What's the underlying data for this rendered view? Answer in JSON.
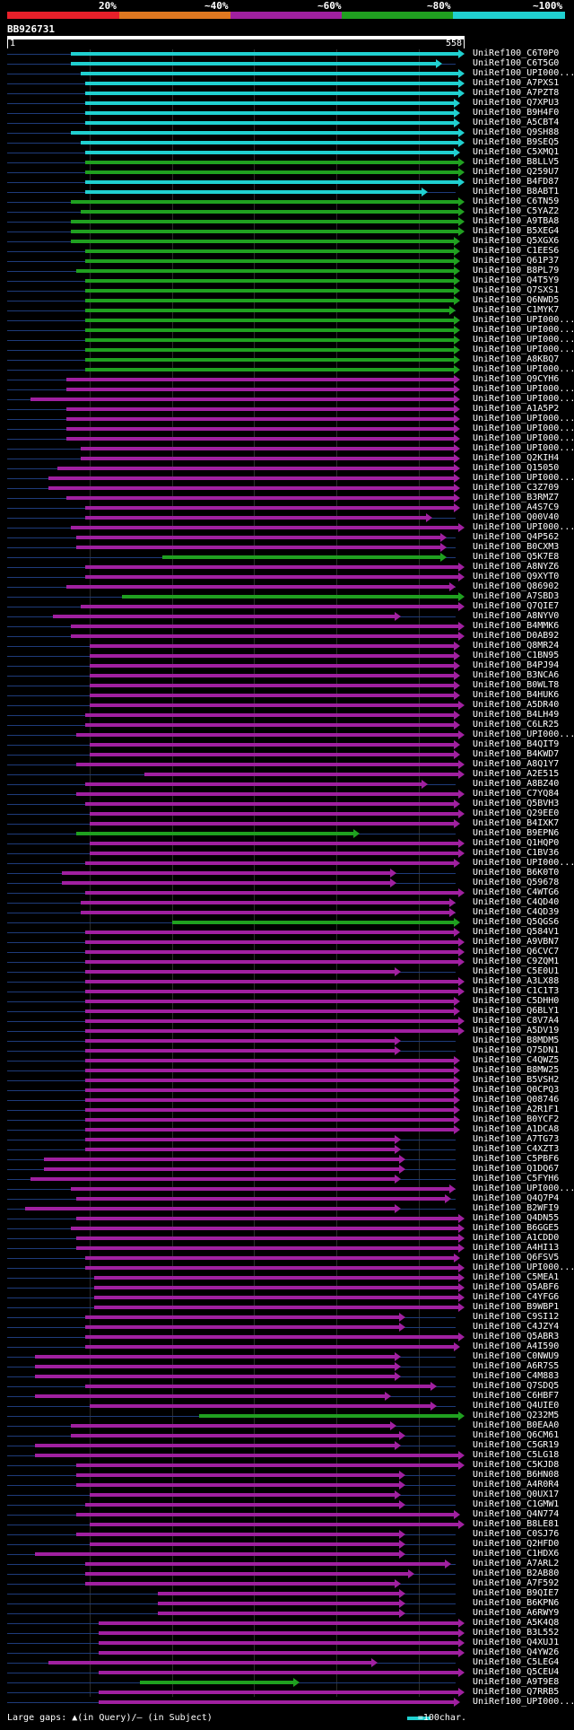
{
  "legend": {
    "labels": [
      "20%",
      "~40%",
      "~60%",
      "~80%",
      "~100%"
    ],
    "colors": [
      "#e8202a",
      "#e07820",
      "#a020a0",
      "#20a020",
      "#20d0d0"
    ]
  },
  "query": {
    "name": "BB926731",
    "start": "1",
    "end": "558"
  },
  "footer": {
    "legend_text": "Large gaps: ▲(in Query)/– (in Subject)",
    "scale_text": "=100char."
  },
  "hits": [
    {
      "label": "UniRef100_C6T0P0",
      "start": 0.14,
      "end": 1.0,
      "color": "#20d0d0"
    },
    {
      "label": "UniRef100_C6T5G0",
      "start": 0.14,
      "end": 0.95,
      "color": "#20d0d0"
    },
    {
      "label": "UniRef100_UPI000...",
      "start": 0.16,
      "end": 1.0,
      "color": "#20d0d0"
    },
    {
      "label": "UniRef100_A7PXS1",
      "start": 0.17,
      "end": 1.0,
      "color": "#20d0d0"
    },
    {
      "label": "UniRef100_A7PZT8",
      "start": 0.17,
      "end": 1.0,
      "color": "#20d0d0"
    },
    {
      "label": "UniRef100_Q7XPU3",
      "start": 0.17,
      "end": 0.99,
      "color": "#20d0d0"
    },
    {
      "label": "UniRef100_B9H4F0",
      "start": 0.17,
      "end": 0.99,
      "color": "#20d0d0"
    },
    {
      "label": "UniRef100_A5CBT4",
      "start": 0.17,
      "end": 0.99,
      "color": "#20d0d0"
    },
    {
      "label": "UniRef100_Q9SH88",
      "start": 0.14,
      "end": 1.0,
      "color": "#20d0d0"
    },
    {
      "label": "UniRef100_B9SEQ5",
      "start": 0.16,
      "end": 1.0,
      "color": "#20d0d0"
    },
    {
      "label": "UniRef100_C5XMQ1",
      "start": 0.17,
      "end": 0.99,
      "color": "#20d0d0"
    },
    {
      "label": "UniRef100_B8LLV5",
      "start": 0.17,
      "end": 1.0,
      "color": "#20a020"
    },
    {
      "label": "UniRef100_Q259U7",
      "start": 0.17,
      "end": 1.0,
      "color": "#20a020"
    },
    {
      "label": "UniRef100_B4FD87",
      "start": 0.17,
      "end": 1.0,
      "color": "#20d0d0"
    },
    {
      "label": "UniRef100_B8ABT1",
      "start": 0.17,
      "end": 0.92,
      "color": "#20d0d0"
    },
    {
      "label": "UniRef100_C6TN59",
      "start": 0.14,
      "end": 1.0,
      "color": "#20a020"
    },
    {
      "label": "UniRef100_C5YAZ2",
      "start": 0.16,
      "end": 1.0,
      "color": "#20a020"
    },
    {
      "label": "UniRef100_A9TBA8",
      "start": 0.14,
      "end": 1.0,
      "color": "#20a020"
    },
    {
      "label": "UniRef100_B5XEG4",
      "start": 0.14,
      "end": 1.0,
      "color": "#20a020"
    },
    {
      "label": "UniRef100_Q5XGX6",
      "start": 0.14,
      "end": 0.99,
      "color": "#20a020"
    },
    {
      "label": "UniRef100_C1EES6",
      "start": 0.17,
      "end": 0.99,
      "color": "#20a020"
    },
    {
      "label": "UniRef100_Q61P37",
      "start": 0.17,
      "end": 0.99,
      "color": "#20a020"
    },
    {
      "label": "UniRef100_B8PL79",
      "start": 0.15,
      "end": 0.99,
      "color": "#20a020"
    },
    {
      "label": "UniRef100_Q4T5Y9",
      "start": 0.17,
      "end": 0.99,
      "color": "#20a020"
    },
    {
      "label": "UniRef100_Q7SXS1",
      "start": 0.17,
      "end": 0.99,
      "color": "#20a020"
    },
    {
      "label": "UniRef100_Q6NWD5",
      "start": 0.17,
      "end": 0.99,
      "color": "#20a020"
    },
    {
      "label": "UniRef100_C1MYK7",
      "start": 0.17,
      "end": 0.98,
      "color": "#20a020"
    },
    {
      "label": "UniRef100_UPI000...",
      "start": 0.17,
      "end": 0.99,
      "color": "#20a020"
    },
    {
      "label": "UniRef100_UPI000...",
      "start": 0.17,
      "end": 0.99,
      "color": "#20a020"
    },
    {
      "label": "UniRef100_UPI000...",
      "start": 0.17,
      "end": 0.99,
      "color": "#20a020"
    },
    {
      "label": "UniRef100_UPI000...",
      "start": 0.17,
      "end": 0.99,
      "color": "#20a020"
    },
    {
      "label": "UniRef100_A8KBQ7",
      "start": 0.17,
      "end": 0.99,
      "color": "#20a020"
    },
    {
      "label": "UniRef100_UPI000...",
      "start": 0.17,
      "end": 0.99,
      "color": "#20a020"
    },
    {
      "label": "UniRef100_Q9CYH6",
      "start": 0.13,
      "end": 0.99,
      "color": "#a020a0"
    },
    {
      "label": "UniRef100_UPI000...",
      "start": 0.13,
      "end": 0.99,
      "color": "#a020a0"
    },
    {
      "label": "UniRef100_UPI000...",
      "start": 0.05,
      "end": 0.99,
      "color": "#a020a0"
    },
    {
      "label": "UniRef100_A1A5P2",
      "start": 0.13,
      "end": 0.99,
      "color": "#a020a0"
    },
    {
      "label": "UniRef100_UPI000...",
      "start": 0.13,
      "end": 0.99,
      "color": "#a020a0"
    },
    {
      "label": "UniRef100_UPI000...",
      "start": 0.13,
      "end": 0.99,
      "color": "#a020a0"
    },
    {
      "label": "UniRef100_UPI000...",
      "start": 0.13,
      "end": 0.99,
      "color": "#a020a0"
    },
    {
      "label": "UniRef100_UPI000...",
      "start": 0.16,
      "end": 0.99,
      "color": "#a020a0"
    },
    {
      "label": "UniRef100_Q2KIH4",
      "start": 0.16,
      "end": 0.99,
      "color": "#a020a0"
    },
    {
      "label": "UniRef100_Q15050",
      "start": 0.11,
      "end": 0.99,
      "color": "#a020a0"
    },
    {
      "label": "UniRef100_UPI000...",
      "start": 0.09,
      "end": 0.99,
      "color": "#a020a0"
    },
    {
      "label": "UniRef100_C3Z709",
      "start": 0.09,
      "end": 0.99,
      "color": "#a020a0"
    },
    {
      "label": "UniRef100_B3RMZ7",
      "start": 0.13,
      "end": 0.99,
      "color": "#a020a0"
    },
    {
      "label": "UniRef100_A4S7C9",
      "start": 0.17,
      "end": 0.99,
      "color": "#a020a0"
    },
    {
      "label": "UniRef100_Q00V40",
      "start": 0.17,
      "end": 0.93,
      "color": "#a020a0"
    },
    {
      "label": "UniRef100_UPI000...",
      "start": 0.14,
      "end": 1.0,
      "color": "#a020a0"
    },
    {
      "label": "UniRef100_Q4P562",
      "start": 0.15,
      "end": 0.96,
      "color": "#a020a0"
    },
    {
      "label": "UniRef100_B0CXM3",
      "start": 0.15,
      "end": 0.96,
      "color": "#a020a0"
    },
    {
      "label": "UniRef100_Q5K7E8",
      "start": 0.34,
      "end": 0.96,
      "color": "#20a020"
    },
    {
      "label": "UniRef100_A8NYZ6",
      "start": 0.17,
      "end": 1.0,
      "color": "#a020a0"
    },
    {
      "label": "UniRef100_Q9XYT0",
      "start": 0.17,
      "end": 1.0,
      "color": "#a020a0"
    },
    {
      "label": "UniRef100_Q86902",
      "start": 0.13,
      "end": 0.98,
      "color": "#a020a0"
    },
    {
      "label": "UniRef100_A7SBD3",
      "start": 0.25,
      "end": 1.0,
      "color": "#20a020"
    },
    {
      "label": "UniRef100_Q7QIE7",
      "start": 0.16,
      "end": 1.0,
      "color": "#a020a0"
    },
    {
      "label": "UniRef100_A8NYV0",
      "start": 0.1,
      "end": 0.86,
      "color": "#a020a0"
    },
    {
      "label": "UniRef100_B4MMK6",
      "start": 0.14,
      "end": 1.0,
      "color": "#a020a0"
    },
    {
      "label": "UniRef100_D0AB92",
      "start": 0.14,
      "end": 1.0,
      "color": "#a020a0"
    },
    {
      "label": "UniRef100_Q8MR24",
      "start": 0.18,
      "end": 0.99,
      "color": "#a020a0"
    },
    {
      "label": "UniRef100_C1BN95",
      "start": 0.18,
      "end": 0.99,
      "color": "#a020a0"
    },
    {
      "label": "UniRef100_B4PJ94",
      "start": 0.18,
      "end": 0.99,
      "color": "#a020a0"
    },
    {
      "label": "UniRef100_B3NCA6",
      "start": 0.18,
      "end": 0.99,
      "color": "#a020a0"
    },
    {
      "label": "UniRef100_B0WLT8",
      "start": 0.18,
      "end": 0.99,
      "color": "#a020a0"
    },
    {
      "label": "UniRef100_B4HUK6",
      "start": 0.18,
      "end": 0.99,
      "color": "#a020a0"
    },
    {
      "label": "UniRef100_A5DR40",
      "start": 0.18,
      "end": 1.0,
      "color": "#a020a0"
    },
    {
      "label": "UniRef100_B4LH49",
      "start": 0.17,
      "end": 0.99,
      "color": "#a020a0"
    },
    {
      "label": "UniRef100_C6LR25",
      "start": 0.17,
      "end": 0.99,
      "color": "#a020a0"
    },
    {
      "label": "UniRef100_UPI000...",
      "start": 0.15,
      "end": 1.0,
      "color": "#a020a0"
    },
    {
      "label": "UniRef100_B4QIT9",
      "start": 0.18,
      "end": 0.99,
      "color": "#a020a0"
    },
    {
      "label": "UniRef100_B4KWD7",
      "start": 0.18,
      "end": 0.99,
      "color": "#a020a0"
    },
    {
      "label": "UniRef100_A8Q1Y7",
      "start": 0.15,
      "end": 1.0,
      "color": "#a020a0"
    },
    {
      "label": "UniRef100_A2E515",
      "start": 0.3,
      "end": 1.0,
      "color": "#a020a0"
    },
    {
      "label": "UniRef100_A8BZ40",
      "start": 0.17,
      "end": 0.92,
      "color": "#a020a0"
    },
    {
      "label": "UniRef100_C7YQ84",
      "start": 0.15,
      "end": 1.0,
      "color": "#a020a0"
    },
    {
      "label": "UniRef100_Q5BVH3",
      "start": 0.17,
      "end": 0.99,
      "color": "#a020a0"
    },
    {
      "label": "UniRef100_Q29EE0",
      "start": 0.18,
      "end": 1.0,
      "color": "#a020a0"
    },
    {
      "label": "UniRef100_B4IXK7",
      "start": 0.18,
      "end": 0.99,
      "color": "#a020a0"
    },
    {
      "label": "UniRef100_B9EPN6",
      "start": 0.15,
      "end": 0.77,
      "color": "#20a020"
    },
    {
      "label": "UniRef100_Q1HQP0",
      "start": 0.18,
      "end": 1.0,
      "color": "#a020a0"
    },
    {
      "label": "UniRef100_C1BV36",
      "start": 0.18,
      "end": 1.0,
      "color": "#a020a0"
    },
    {
      "label": "UniRef100_UPI000...",
      "start": 0.17,
      "end": 0.99,
      "color": "#a020a0"
    },
    {
      "label": "UniRef100_B6K0T0",
      "start": 0.12,
      "end": 0.85,
      "color": "#a020a0"
    },
    {
      "label": "UniRef100_Q59678",
      "start": 0.12,
      "end": 0.85,
      "color": "#a020a0"
    },
    {
      "label": "UniRef100_C4WTG6",
      "start": 0.17,
      "end": 1.0,
      "color": "#a020a0"
    },
    {
      "label": "UniRef100_C4QD40",
      "start": 0.16,
      "end": 0.98,
      "color": "#a020a0"
    },
    {
      "label": "UniRef100_C4QD39",
      "start": 0.16,
      "end": 0.98,
      "color": "#a020a0"
    },
    {
      "label": "UniRef100_Q5QGS6",
      "start": 0.36,
      "end": 0.99,
      "color": "#20a020"
    },
    {
      "label": "UniRef100_Q584V1",
      "start": 0.17,
      "end": 0.99,
      "color": "#a020a0"
    },
    {
      "label": "UniRef100_A9VBN7",
      "start": 0.17,
      "end": 1.0,
      "color": "#a020a0"
    },
    {
      "label": "UniRef100_Q6CVC7",
      "start": 0.17,
      "end": 1.0,
      "color": "#a020a0"
    },
    {
      "label": "UniRef100_C9ZQM1",
      "start": 0.17,
      "end": 1.0,
      "color": "#a020a0"
    },
    {
      "label": "UniRef100_C5E0U1",
      "start": 0.17,
      "end": 0.86,
      "color": "#a020a0"
    },
    {
      "label": "UniRef100_A3LX88",
      "start": 0.17,
      "end": 1.0,
      "color": "#a020a0"
    },
    {
      "label": "UniRef100_C1C1T3",
      "start": 0.17,
      "end": 1.0,
      "color": "#a020a0"
    },
    {
      "label": "UniRef100_C5DHH0",
      "start": 0.17,
      "end": 0.99,
      "color": "#a020a0"
    },
    {
      "label": "UniRef100_Q6BLY1",
      "start": 0.17,
      "end": 0.99,
      "color": "#a020a0"
    },
    {
      "label": "UniRef100_C8V7A4",
      "start": 0.17,
      "end": 1.0,
      "color": "#a020a0"
    },
    {
      "label": "UniRef100_A5DV19",
      "start": 0.17,
      "end": 1.0,
      "color": "#a020a0"
    },
    {
      "label": "UniRef100_B8MDM5",
      "start": 0.17,
      "end": 0.86,
      "color": "#a020a0"
    },
    {
      "label": "UniRef100_Q75DN1",
      "start": 0.17,
      "end": 0.86,
      "color": "#a020a0"
    },
    {
      "label": "UniRef100_C4QWZ5",
      "start": 0.17,
      "end": 0.99,
      "color": "#a020a0"
    },
    {
      "label": "UniRef100_B8MW25",
      "start": 0.17,
      "end": 0.99,
      "color": "#a020a0"
    },
    {
      "label": "UniRef100_B5VSH2",
      "start": 0.17,
      "end": 0.99,
      "color": "#a020a0"
    },
    {
      "label": "UniRef100_Q0CPQ3",
      "start": 0.17,
      "end": 0.99,
      "color": "#a020a0"
    },
    {
      "label": "UniRef100_Q08746",
      "start": 0.17,
      "end": 0.99,
      "color": "#a020a0"
    },
    {
      "label": "UniRef100_A2R1F1",
      "start": 0.17,
      "end": 0.99,
      "color": "#a020a0"
    },
    {
      "label": "UniRef100_B0YCF2",
      "start": 0.17,
      "end": 0.99,
      "color": "#a020a0"
    },
    {
      "label": "UniRef100_A1DCA8",
      "start": 0.17,
      "end": 0.99,
      "color": "#a020a0"
    },
    {
      "label": "UniRef100_A7TG73",
      "start": 0.17,
      "end": 0.86,
      "color": "#a020a0"
    },
    {
      "label": "UniRef100_C4XZT3",
      "start": 0.17,
      "end": 0.86,
      "color": "#a020a0"
    },
    {
      "label": "UniRef100_C5PBF6",
      "start": 0.08,
      "end": 0.87,
      "color": "#a020a0"
    },
    {
      "label": "UniRef100_Q1DQ67",
      "start": 0.08,
      "end": 0.87,
      "color": "#a020a0"
    },
    {
      "label": "UniRef100_C5FYH6",
      "start": 0.05,
      "end": 0.86,
      "color": "#a020a0"
    },
    {
      "label": "UniRef100_UPI000...",
      "start": 0.14,
      "end": 0.98,
      "color": "#a020a0"
    },
    {
      "label": "UniRef100_Q4Q7P4",
      "start": 0.15,
      "end": 0.97,
      "color": "#a020a0"
    },
    {
      "label": "UniRef100_B2WFI9",
      "start": 0.04,
      "end": 0.86,
      "color": "#a020a0"
    },
    {
      "label": "UniRef100_Q4DN55",
      "start": 0.15,
      "end": 1.0,
      "color": "#a020a0"
    },
    {
      "label": "UniRef100_B6GGE5",
      "start": 0.14,
      "end": 1.0,
      "color": "#a020a0"
    },
    {
      "label": "UniRef100_A1CDD0",
      "start": 0.15,
      "end": 1.0,
      "color": "#a020a0"
    },
    {
      "label": "UniRef100_A4HI13",
      "start": 0.15,
      "end": 1.0,
      "color": "#a020a0"
    },
    {
      "label": "UniRef100_Q6FSV5",
      "start": 0.17,
      "end": 0.99,
      "color": "#a020a0"
    },
    {
      "label": "UniRef100_UPI000...",
      "start": 0.17,
      "end": 1.0,
      "color": "#a020a0"
    },
    {
      "label": "UniRef100_C5MEA1",
      "start": 0.19,
      "end": 1.0,
      "color": "#a020a0"
    },
    {
      "label": "UniRef100_Q5ABF6",
      "start": 0.19,
      "end": 1.0,
      "color": "#a020a0"
    },
    {
      "label": "UniRef100_C4YFG6",
      "start": 0.19,
      "end": 1.0,
      "color": "#a020a0"
    },
    {
      "label": "UniRef100_B9WBP1",
      "start": 0.19,
      "end": 1.0,
      "color": "#a020a0"
    },
    {
      "label": "UniRef100_C9SI12",
      "start": 0.17,
      "end": 0.87,
      "color": "#a020a0"
    },
    {
      "label": "UniRef100_C4JZY4",
      "start": 0.17,
      "end": 0.87,
      "color": "#a020a0"
    },
    {
      "label": "UniRef100_Q5ABR3",
      "start": 0.17,
      "end": 1.0,
      "color": "#a020a0"
    },
    {
      "label": "UniRef100_A4I590",
      "start": 0.17,
      "end": 0.99,
      "color": "#a020a0"
    },
    {
      "label": "UniRef100_C0NWU9",
      "start": 0.06,
      "end": 0.86,
      "color": "#a020a0"
    },
    {
      "label": "UniRef100_A6R7S5",
      "start": 0.06,
      "end": 0.86,
      "color": "#a020a0"
    },
    {
      "label": "UniRef100_C4M883",
      "start": 0.06,
      "end": 0.86,
      "color": "#a020a0"
    },
    {
      "label": "UniRef100_Q7SDQ5",
      "start": 0.17,
      "end": 0.94,
      "color": "#a020a0"
    },
    {
      "label": "UniRef100_C6HBF7",
      "start": 0.06,
      "end": 0.84,
      "color": "#a020a0"
    },
    {
      "label": "UniRef100_Q4UIE0",
      "start": 0.18,
      "end": 0.94,
      "color": "#a020a0"
    },
    {
      "label": "UniRef100_Q232M5",
      "start": 0.42,
      "end": 1.0,
      "color": "#20a020"
    },
    {
      "label": "UniRef100_B0EAA0",
      "start": 0.14,
      "end": 0.85,
      "color": "#a020a0"
    },
    {
      "label": "UniRef100_Q6CM61",
      "start": 0.14,
      "end": 0.87,
      "color": "#a020a0"
    },
    {
      "label": "UniRef100_C5GR19",
      "start": 0.06,
      "end": 0.86,
      "color": "#a020a0"
    },
    {
      "label": "UniRef100_C5LG18",
      "start": 0.06,
      "end": 1.0,
      "color": "#a020a0"
    },
    {
      "label": "UniRef100_C5KJD8",
      "start": 0.15,
      "end": 1.0,
      "color": "#a020a0"
    },
    {
      "label": "UniRef100_B6HN08",
      "start": 0.15,
      "end": 0.87,
      "color": "#a020a0"
    },
    {
      "label": "UniRef100_A4R0R4",
      "start": 0.15,
      "end": 0.87,
      "color": "#a020a0"
    },
    {
      "label": "UniRef100_Q0UX17",
      "start": 0.18,
      "end": 0.86,
      "color": "#a020a0"
    },
    {
      "label": "UniRef100_C1GMW1",
      "start": 0.17,
      "end": 0.87,
      "color": "#a020a0"
    },
    {
      "label": "UniRef100_Q4N774",
      "start": 0.15,
      "end": 0.99,
      "color": "#a020a0"
    },
    {
      "label": "UniRef100_B8LE81",
      "start": 0.18,
      "end": 1.0,
      "color": "#a020a0"
    },
    {
      "label": "UniRef100_C0SJ76",
      "start": 0.15,
      "end": 0.87,
      "color": "#a020a0"
    },
    {
      "label": "UniRef100_Q2HFD0",
      "start": 0.18,
      "end": 0.87,
      "color": "#a020a0"
    },
    {
      "label": "UniRef100_C1HDX6",
      "start": 0.06,
      "end": 0.87,
      "color": "#a020a0"
    },
    {
      "label": "UniRef100_A7ARL2",
      "start": 0.17,
      "end": 0.97,
      "color": "#a020a0"
    },
    {
      "label": "UniRef100_B2AB80",
      "start": 0.17,
      "end": 0.89,
      "color": "#a020a0"
    },
    {
      "label": "UniRef100_A7F592",
      "start": 0.17,
      "end": 0.86,
      "color": "#a020a0"
    },
    {
      "label": "UniRef100_B9QIE7",
      "start": 0.33,
      "end": 0.87,
      "color": "#a020a0"
    },
    {
      "label": "UniRef100_B6KPN6",
      "start": 0.33,
      "end": 0.87,
      "color": "#a020a0"
    },
    {
      "label": "UniRef100_A6RWY9",
      "start": 0.33,
      "end": 0.87,
      "color": "#a020a0"
    },
    {
      "label": "UniRef100_A5K4Q8",
      "start": 0.2,
      "end": 1.0,
      "color": "#a020a0"
    },
    {
      "label": "UniRef100_B3L552",
      "start": 0.2,
      "end": 1.0,
      "color": "#a020a0"
    },
    {
      "label": "UniRef100_Q4XUJ1",
      "start": 0.2,
      "end": 1.0,
      "color": "#a020a0"
    },
    {
      "label": "UniRef100_Q4YW26",
      "start": 0.2,
      "end": 1.0,
      "color": "#a020a0"
    },
    {
      "label": "UniRef100_C5LEG4",
      "start": 0.09,
      "end": 0.81,
      "color": "#a020a0"
    },
    {
      "label": "UniRef100_Q5CEU4",
      "start": 0.2,
      "end": 1.0,
      "color": "#a020a0"
    },
    {
      "label": "UniRef100_A9T9E8",
      "start": 0.29,
      "end": 0.64,
      "color": "#20a020"
    },
    {
      "label": "UniRef100_Q7RRB5",
      "start": 0.2,
      "end": 1.0,
      "color": "#a020a0"
    },
    {
      "label": "UniRef100_UPI000...",
      "start": 0.2,
      "end": 0.99,
      "color": "#a020a0"
    }
  ]
}
